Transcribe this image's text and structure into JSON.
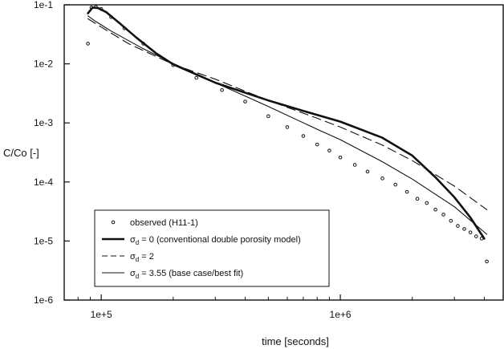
{
  "chart_data": {
    "type": "line",
    "xlabel": "time [seconds]",
    "ylabel": "C/Co [-]",
    "x_scale": "log",
    "y_scale": "log",
    "xlim": [
      70000,
      4800000
    ],
    "ylim": [
      1e-06,
      0.1
    ],
    "x_ticks": [
      {
        "value": 100000,
        "label": "1e+5"
      },
      {
        "value": 1000000,
        "label": "1e+6"
      }
    ],
    "y_ticks": [
      {
        "value": 0.1,
        "label": "1e-1"
      },
      {
        "value": 0.01,
        "label": "1e-2"
      },
      {
        "value": 0.001,
        "label": "1e-3"
      },
      {
        "value": 0.0001,
        "label": "1e-4"
      },
      {
        "value": 1e-05,
        "label": "1e-5"
      },
      {
        "value": 1e-06,
        "label": "1e-6"
      }
    ],
    "grid": false,
    "legend_position": "bottom-left",
    "series": [
      {
        "name": "observed (H11-1)",
        "style": "points",
        "color": "#111111",
        "x": [
          88000,
          91000,
          95000,
          100000,
          110000,
          125000,
          150000,
          200000,
          250000,
          320000,
          400000,
          500000,
          600000,
          700000,
          800000,
          900000,
          1000000,
          1150000,
          1300000,
          1500000,
          1700000,
          1900000,
          2100000,
          2300000,
          2500000,
          2700000,
          2900000,
          3100000,
          3300000,
          3500000,
          3700000,
          3900000,
          4100000
        ],
        "y": [
          0.022,
          0.09,
          0.092,
          0.085,
          0.062,
          0.04,
          0.022,
          0.0095,
          0.0058,
          0.0036,
          0.0023,
          0.0013,
          0.00085,
          0.0006,
          0.00043,
          0.00034,
          0.00026,
          0.000195,
          0.00015,
          0.000115,
          9e-05,
          6.8e-05,
          5.2e-05,
          4.4e-05,
          3.4e-05,
          2.8e-05,
          2.2e-05,
          1.8e-05,
          1.6e-05,
          1.4e-05,
          1.2e-05,
          1.1e-05,
          4.5e-06
        ]
      },
      {
        "name": "σd = 0 (conventional double porosity model)",
        "name_parts": {
          "symbol": "σ",
          "sub": "d",
          "rest": " = 0 (conventional double porosity model)"
        },
        "style": "thick",
        "color": "#111111",
        "x": [
          88000,
          92000,
          97000,
          105000,
          120000,
          140000,
          170000,
          200000,
          300000,
          500000,
          700000,
          1000000,
          1500000,
          2000000,
          2500000,
          3000000,
          3500000,
          4000000
        ],
        "y": [
          0.072,
          0.09,
          0.088,
          0.075,
          0.048,
          0.028,
          0.015,
          0.0098,
          0.0048,
          0.0024,
          0.0016,
          0.00105,
          0.00056,
          0.00028,
          0.00012,
          5.5e-05,
          2.5e-05,
          1.1e-05
        ]
      },
      {
        "name": "σd = 2",
        "name_parts": {
          "symbol": "σ",
          "sub": "d",
          "rest": " = 2"
        },
        "style": "dashed",
        "color": "#111111",
        "x": [
          88000,
          100000,
          130000,
          200000,
          300000,
          500000,
          800000,
          1000000,
          1500000,
          2000000,
          3000000,
          4100000
        ],
        "y": [
          0.058,
          0.042,
          0.022,
          0.0098,
          0.0055,
          0.0024,
          0.0012,
          0.00085,
          0.00042,
          0.00023,
          8.5e-05,
          3.4e-05
        ]
      },
      {
        "name": "σd = 3.55 (base case/best fit)",
        "name_parts": {
          "symbol": "σ",
          "sub": "d",
          "rest": " = 3.55 (base case/best fit)"
        },
        "style": "thin",
        "color": "#111111",
        "x": [
          88000,
          95000,
          110000,
          150000,
          200000,
          300000,
          500000,
          800000,
          1000000,
          1500000,
          2000000,
          3000000,
          4100000
        ],
        "y": [
          0.065,
          0.052,
          0.036,
          0.018,
          0.0102,
          0.0048,
          0.0019,
          0.00078,
          0.00052,
          0.00022,
          0.000112,
          3.8e-05,
          1.3e-05
        ]
      }
    ]
  }
}
